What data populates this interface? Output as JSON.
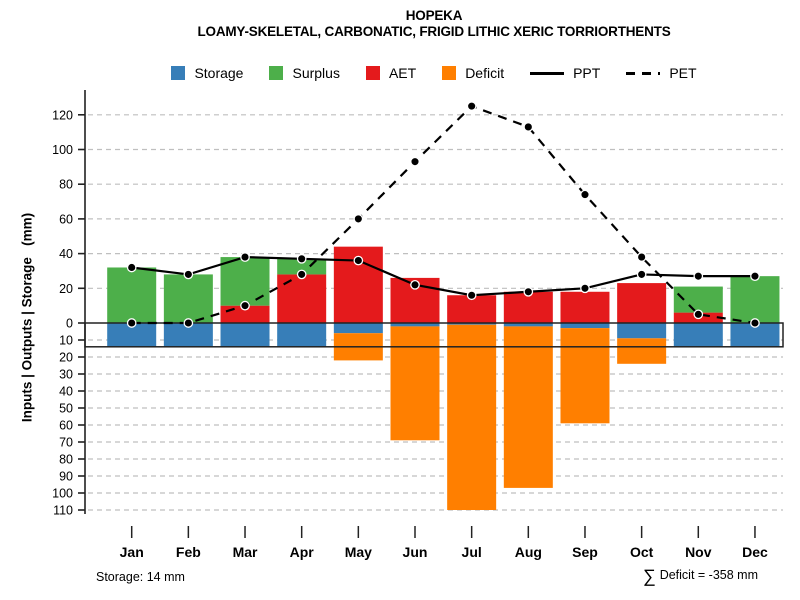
{
  "chart_data": {
    "type": "bar",
    "variant": "monthly-water-balance stacked bars with PPT/PET lines",
    "title": "HOPEKA",
    "subtitle": "LOAMY-SKELETAL, CARBONATIC, FRIGID LITHIC XERIC TORRIORTHENTS",
    "ylabel": "Inputs | Outputs | Storage   (mm)",
    "months": [
      "Jan",
      "Feb",
      "Mar",
      "Apr",
      "May",
      "Jun",
      "Jul",
      "Aug",
      "Sep",
      "Oct",
      "Nov",
      "Dec"
    ],
    "series": {
      "storage_mm": [
        14,
        14,
        14,
        14,
        6,
        2,
        1,
        2,
        3,
        9,
        14,
        14
      ],
      "aet_mm": [
        0,
        0,
        10,
        28,
        44,
        26,
        16,
        18,
        18,
        23,
        6,
        0
      ],
      "surplus_mm": [
        32,
        28,
        28,
        9,
        0,
        0,
        0,
        0,
        0,
        0,
        15,
        27
      ],
      "deficit_mm": [
        0,
        0,
        0,
        0,
        16,
        67,
        109,
        95,
        56,
        15,
        0,
        0
      ],
      "ppt_mm": [
        32,
        28,
        38,
        37,
        36,
        22,
        16,
        18,
        20,
        28,
        27,
        27
      ],
      "pet_mm": [
        0,
        0,
        10,
        28,
        60,
        93,
        125,
        113,
        74,
        38,
        5,
        0
      ]
    },
    "y_axis": {
      "upper_ticks": [
        0,
        20,
        40,
        60,
        80,
        100,
        120
      ],
      "lower_ticks": [
        10,
        20,
        30,
        40,
        50,
        60,
        70,
        80,
        90,
        100,
        110
      ],
      "upper_range_mm": [
        0,
        125
      ],
      "lower_range_mm": [
        0,
        110
      ],
      "grid": "horizontal dashed"
    },
    "storage_capacity_mm": 14,
    "legend_position": "top-center"
  },
  "legend": {
    "items": [
      {
        "key": "storage",
        "label": "Storage",
        "swatch": "box"
      },
      {
        "key": "surplus",
        "label": "Surplus",
        "swatch": "box"
      },
      {
        "key": "aet",
        "label": "AET",
        "swatch": "box"
      },
      {
        "key": "deficit",
        "label": "Deficit",
        "swatch": "box"
      },
      {
        "key": "ppt",
        "label": "PPT",
        "swatch": "line-solid"
      },
      {
        "key": "pet",
        "label": "PET",
        "swatch": "line-dashed"
      }
    ]
  },
  "colors": {
    "storage": "#377EB8",
    "surplus": "#4DAF4A",
    "aet": "#E41A1C",
    "deficit": "#FF7F00",
    "line": "#000000",
    "grid": "#BFBFBF",
    "axis": "#222222"
  },
  "annotations": {
    "storage_note": "Storage: 14 mm",
    "sigma": "∑",
    "deficit_note": "Deficit = -358 mm"
  }
}
